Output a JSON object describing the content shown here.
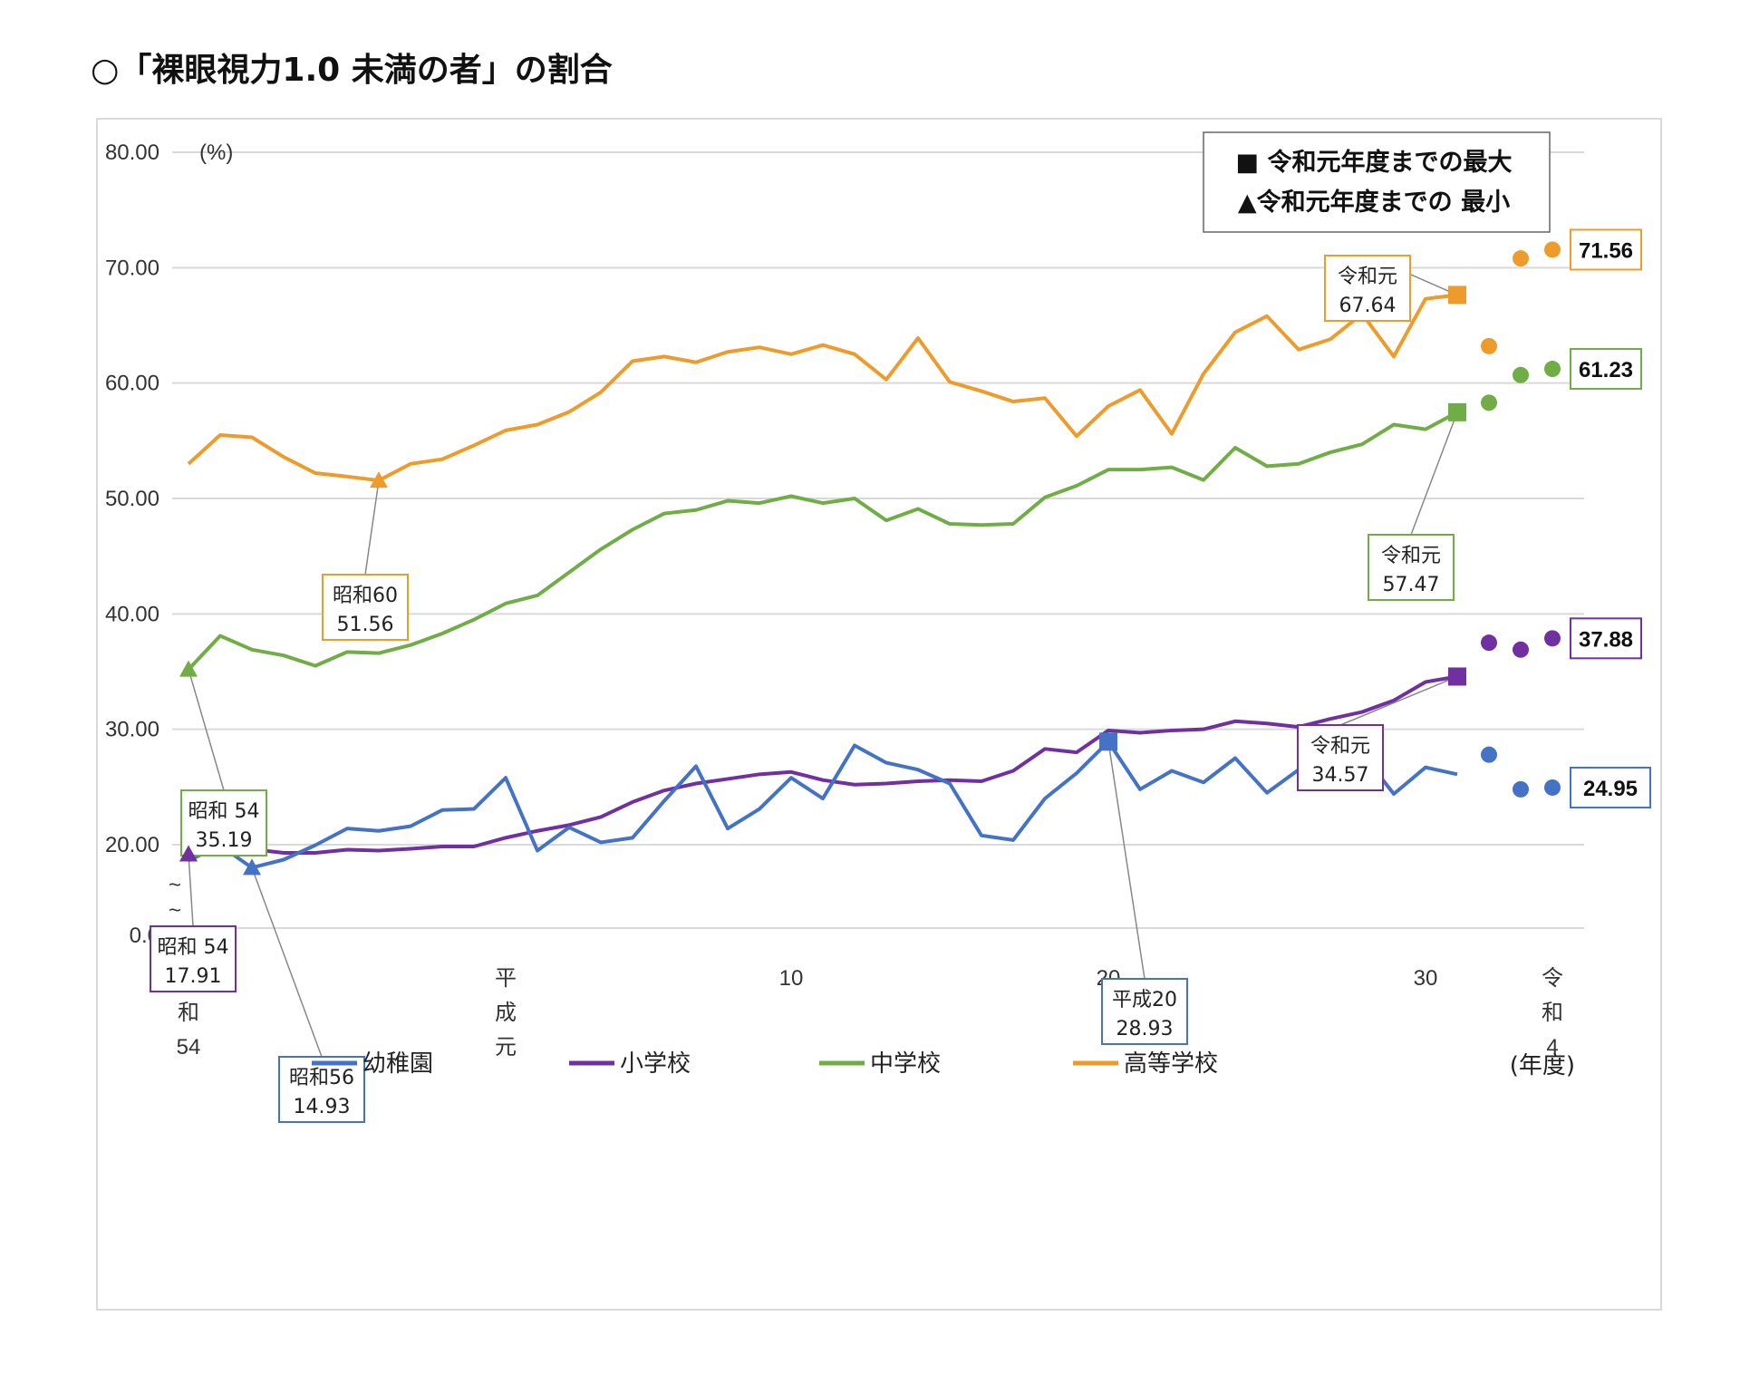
{
  "title": "○「裸眼視力1.0 未満の者」の割合",
  "colors": {
    "kindergarten": "#4472c4",
    "elementary": "#7030a0",
    "junior_high": "#70ad47",
    "high_school": "#ed9b2a"
  },
  "chart_data": {
    "type": "line",
    "title": "○「裸眼視力1.0 未満の者」の割合",
    "y_unit_label": "(%)",
    "x_unit_label": "(年度)",
    "ylim": [
      0,
      80
    ],
    "y_axis_break": true,
    "yticks": [
      "0.0",
      "20.00",
      "30.00",
      "40.00",
      "50.00",
      "60.00",
      "70.00",
      "80.00"
    ],
    "xticks": [
      {
        "index": 0,
        "label": "昭\n和\n54"
      },
      {
        "index": 10,
        "label": "平\n成\n元"
      },
      {
        "index": 19,
        "label": "10"
      },
      {
        "index": 29,
        "label": "20"
      },
      {
        "index": 39,
        "label": "30"
      },
      {
        "index": 43,
        "label": "令\n和\n4"
      }
    ],
    "x_indices": [
      0,
      1,
      2,
      3,
      4,
      5,
      6,
      7,
      8,
      9,
      10,
      11,
      12,
      13,
      14,
      15,
      16,
      17,
      18,
      19,
      20,
      21,
      22,
      23,
      24,
      25,
      26,
      27,
      28,
      29,
      30,
      31,
      32,
      33,
      34,
      35,
      36,
      37,
      38,
      39,
      40
    ],
    "grid": true,
    "legend_position": "bottom",
    "series": [
      {
        "name": "幼稚園",
        "color_key": "kindergarten",
        "values": [
          16.5,
          19.8,
          14.93,
          16.7,
          19.9,
          21.4,
          21.2,
          21.6,
          23.0,
          23.1,
          25.8,
          18.7,
          21.5,
          20.2,
          20.6,
          23.8,
          26.8,
          21.4,
          23.1,
          25.8,
          24.0,
          28.6,
          27.1,
          26.5,
          25.3,
          20.8,
          20.4,
          24.0,
          26.2,
          28.93,
          24.8,
          26.4,
          25.4,
          27.5,
          24.5,
          26.5,
          26.8,
          27.9,
          24.4,
          26.7,
          26.1
        ],
        "extra_points": [
          {
            "index": 41,
            "value": 27.8
          },
          {
            "index": 42,
            "value": 24.8
          },
          {
            "index": 43,
            "value": 24.95
          }
        ]
      },
      {
        "name": "小学校",
        "color_key": "elementary",
        "values": [
          17.91,
          19.8,
          19.0,
          18.2,
          18.2,
          18.9,
          18.7,
          19.1,
          19.6,
          19.6,
          20.6,
          21.2,
          21.7,
          22.4,
          23.7,
          24.7,
          25.3,
          25.7,
          26.1,
          26.3,
          25.6,
          25.2,
          25.3,
          25.5,
          25.6,
          25.5,
          26.4,
          28.3,
          28.0,
          29.9,
          29.7,
          29.9,
          30.0,
          30.7,
          30.5,
          30.2,
          30.9,
          31.5,
          32.5,
          34.1,
          34.57
        ],
        "extra_points": [
          {
            "index": 41,
            "value": 37.5
          },
          {
            "index": 42,
            "value": 36.9
          },
          {
            "index": 43,
            "value": 37.88
          }
        ]
      },
      {
        "name": "中学校",
        "color_key": "junior_high",
        "values": [
          35.19,
          38.1,
          36.9,
          36.4,
          35.5,
          36.7,
          36.6,
          37.3,
          38.3,
          39.5,
          40.9,
          41.6,
          43.6,
          45.6,
          47.3,
          48.7,
          49.0,
          49.8,
          49.6,
          50.2,
          49.6,
          50.0,
          48.1,
          49.1,
          47.8,
          47.7,
          47.8,
          50.1,
          51.1,
          52.5,
          52.5,
          52.7,
          51.6,
          54.4,
          52.8,
          53.0,
          54.0,
          54.7,
          56.4,
          56.0,
          57.47
        ],
        "extra_points": [
          {
            "index": 41,
            "value": 58.3
          },
          {
            "index": 42,
            "value": 60.7
          },
          {
            "index": 43,
            "value": 61.23
          }
        ]
      },
      {
        "name": "高等学校",
        "color_key": "high_school",
        "values": [
          53.0,
          55.5,
          55.3,
          53.6,
          52.2,
          51.9,
          51.56,
          53.0,
          53.4,
          54.6,
          55.9,
          56.4,
          57.5,
          59.2,
          61.9,
          62.3,
          61.8,
          62.7,
          63.1,
          62.5,
          63.3,
          62.5,
          60.3,
          63.9,
          60.1,
          59.3,
          58.4,
          58.7,
          55.4,
          58.0,
          59.4,
          55.6,
          60.8,
          64.4,
          65.8,
          62.9,
          63.8,
          66.0,
          62.3,
          67.3,
          67.64
        ],
        "extra_points": [
          {
            "index": 41,
            "value": 63.2
          },
          {
            "index": 42,
            "value": 70.8
          },
          {
            "index": 43,
            "value": 71.56
          }
        ]
      }
    ],
    "annotations": [
      {
        "series": "high_school",
        "index": 6,
        "marker": "triangle",
        "line1": "昭和60",
        "line2": "51.56"
      },
      {
        "series": "high_school",
        "index": 40,
        "marker": "square",
        "line1": "令和元",
        "line2": "67.64"
      },
      {
        "series": "junior_high",
        "index": 0,
        "marker": "triangle",
        "line1": "昭和 54",
        "line2": "35.19"
      },
      {
        "series": "junior_high",
        "index": 40,
        "marker": "square",
        "line1": "令和元",
        "line2": "57.47"
      },
      {
        "series": "elementary",
        "index": 0,
        "marker": "triangle",
        "line1": "昭和 54",
        "line2": "17.91"
      },
      {
        "series": "elementary",
        "index": 40,
        "marker": "square",
        "line1": "令和元",
        "line2": "34.57"
      },
      {
        "series": "kindergarten",
        "index": 2,
        "marker": "triangle",
        "line1": "昭和56",
        "line2": "14.93"
      },
      {
        "series": "kindergarten",
        "index": 29,
        "marker": "square",
        "line1": "平成20",
        "line2": "28.93"
      }
    ],
    "latest_labels": [
      {
        "series": "high_school",
        "text": "71.56"
      },
      {
        "series": "junior_high",
        "text": "61.23"
      },
      {
        "series": "elementary",
        "text": "37.88"
      },
      {
        "series": "kindergarten",
        "text": "24.95"
      }
    ],
    "legend_note": {
      "line1": "■ 令和元年度までの最大",
      "line2": "▲令和元年度までの 最小"
    }
  }
}
